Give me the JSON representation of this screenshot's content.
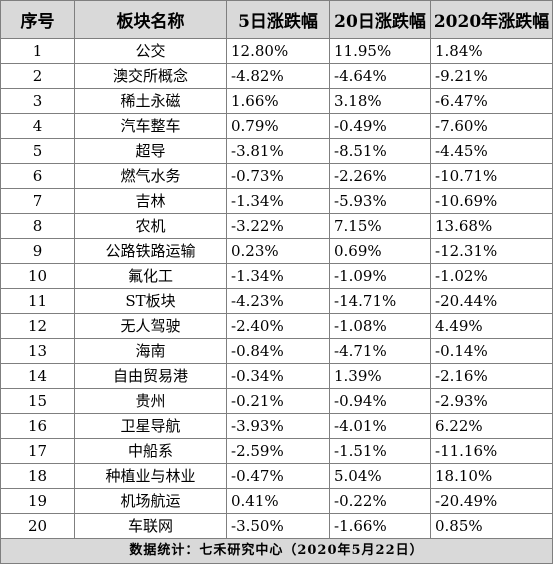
{
  "table": {
    "headers": [
      "序号",
      "板块名称",
      "5日涨跌幅",
      "20日涨跌幅",
      "2020年涨跌幅"
    ],
    "rows": [
      [
        "1",
        "公交",
        "12.80%",
        "11.95%",
        "1.84%"
      ],
      [
        "2",
        "澳交所概念",
        "-4.82%",
        "-4.64%",
        "-9.21%"
      ],
      [
        "3",
        "稀土永磁",
        "1.66%",
        "3.18%",
        "-6.47%"
      ],
      [
        "4",
        "汽车整车",
        "0.79%",
        "-0.49%",
        "-7.60%"
      ],
      [
        "5",
        "超导",
        "-3.81%",
        "-8.51%",
        "-4.45%"
      ],
      [
        "6",
        "燃气水务",
        "-0.73%",
        "-2.26%",
        "-10.71%"
      ],
      [
        "7",
        "吉林",
        "-1.34%",
        "-5.93%",
        "-10.69%"
      ],
      [
        "8",
        "农机",
        "-3.22%",
        "7.15%",
        "13.68%"
      ],
      [
        "9",
        "公路铁路运输",
        "0.23%",
        "0.69%",
        "-12.31%"
      ],
      [
        "10",
        "氟化工",
        "-1.34%",
        "-1.09%",
        "-1.02%"
      ],
      [
        "11",
        "ST板块",
        "-4.23%",
        "-14.71%",
        "-20.44%"
      ],
      [
        "12",
        "无人驾驶",
        "-2.40%",
        "-1.08%",
        "4.49%"
      ],
      [
        "13",
        "海南",
        "-0.84%",
        "-4.71%",
        "-0.14%"
      ],
      [
        "14",
        "自由贸易港",
        "-0.34%",
        "1.39%",
        "-2.16%"
      ],
      [
        "15",
        "贵州",
        "-0.21%",
        "-0.94%",
        "-2.93%"
      ],
      [
        "16",
        "卫星导航",
        "-3.93%",
        "-4.01%",
        "6.22%"
      ],
      [
        "17",
        "中船系",
        "-2.59%",
        "-1.51%",
        "-11.16%"
      ],
      [
        "18",
        "种植业与林业",
        "-0.47%",
        "5.04%",
        "18.10%"
      ],
      [
        "19",
        "机场航运",
        "0.41%",
        "-0.22%",
        "-20.49%"
      ],
      [
        "20",
        "车联网",
        "-3.50%",
        "-1.66%",
        "0.85%"
      ]
    ],
    "footer": "数据统计：七禾研究中心（2020年5月22日）"
  }
}
